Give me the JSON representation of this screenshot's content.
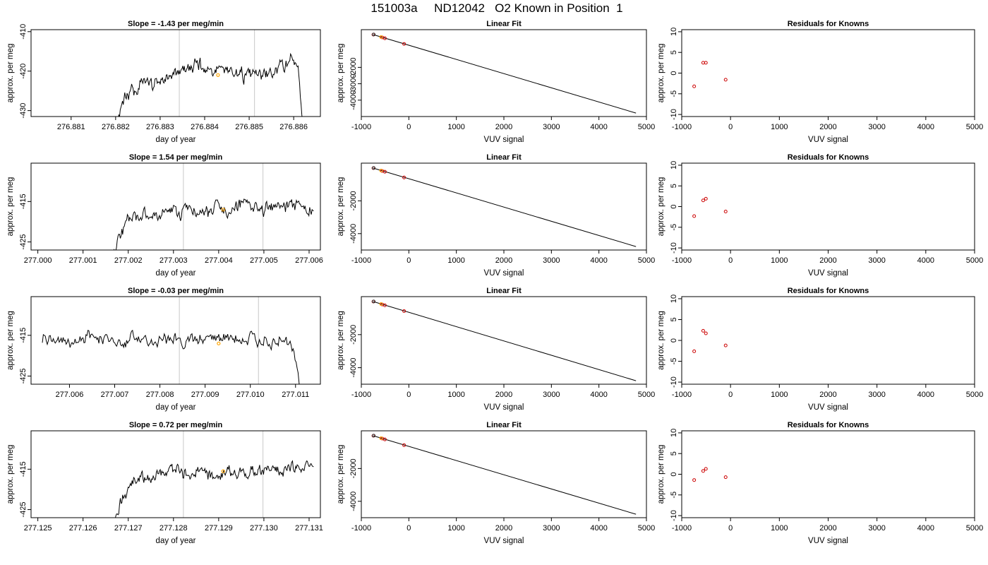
{
  "figure": {
    "title": "151003a     ND12042   O2 Known in Position  1"
  },
  "chart_data": [
    {
      "type": "line",
      "row": 1,
      "title": "Slope =  -1.43  per meg/min",
      "xlabel": "day of year",
      "ylabel": "approx. per meg",
      "xlim": [
        276.8801,
        276.8866
      ],
      "ylim": [
        -431.5,
        -409.5
      ],
      "xticks": [
        "276.881",
        "276.882",
        "276.883",
        "276.884",
        "276.885",
        "276.886"
      ],
      "yticks": [
        "-410",
        "-420",
        "-430"
      ],
      "vlines": [
        276.88343,
        276.88512
      ],
      "marker": {
        "x": 276.8843,
        "y": -421,
        "color": "#ffa500"
      },
      "trace": {
        "x_start": 276.8818,
        "x_end": 276.8862,
        "base": -421.5,
        "amp": 2.2,
        "seed": 11,
        "envelope": [
          [
            276.8818,
            -440
          ],
          [
            276.88205,
            -431.5
          ],
          [
            276.8822,
            -428
          ],
          [
            276.8825,
            -424
          ],
          [
            276.8829,
            -422.5
          ],
          [
            276.8833,
            -421
          ],
          [
            276.8838,
            -419
          ],
          [
            276.8845,
            -420
          ],
          [
            276.8853,
            -421
          ],
          [
            276.8858,
            -419
          ],
          [
            276.88595,
            -416.5
          ],
          [
            276.8861,
            -418
          ],
          [
            276.88615,
            -425
          ],
          [
            276.8862,
            -434
          ]
        ]
      }
    },
    {
      "type": "line",
      "title": "Linear Fit",
      "row": 1,
      "xlabel": "VUV signal",
      "ylabel": "approx. per meg",
      "xlim": [
        -1000,
        5000
      ],
      "ylim": [
        -5000,
        300
      ],
      "xticks": [
        "-1000",
        "0",
        "1000",
        "2000",
        "3000",
        "4000",
        "5000"
      ],
      "yticks": [
        "-2000",
        "-3000",
        "-4000"
      ],
      "line": [
        [
          -750,
          0
        ],
        [
          4780,
          -4790
        ]
      ],
      "points": [
        [
          -745,
          0,
          "#cc0000"
        ],
        [
          -560,
          -175,
          "#cc0000"
        ],
        [
          -505,
          -225,
          "#cc0000"
        ],
        [
          -100,
          -570,
          "#cc0000"
        ],
        [
          -740,
          5,
          "#222222"
        ],
        [
          -585,
          -150,
          "#ffa500"
        ]
      ]
    },
    {
      "type": "scatter",
      "title": "Residuals for Knowns",
      "row": 1,
      "xlabel": "VUV signal",
      "ylabel": "approx. per meg",
      "xlim": [
        -1000,
        5000
      ],
      "ylim": [
        -10.5,
        10.5
      ],
      "xticks": [
        "-1000",
        "0",
        "1000",
        "2000",
        "3000",
        "4000",
        "5000"
      ],
      "yticks": [
        "10",
        "5",
        "0",
        "-5",
        "-10"
      ],
      "points": [
        [
          -745,
          -3.2
        ],
        [
          -560,
          2.5
        ],
        [
          -505,
          2.5
        ],
        [
          -100,
          -1.6
        ]
      ]
    },
    {
      "type": "line",
      "row": 2,
      "title": "Slope =  1.54  per meg/min",
      "xlabel": "day of year",
      "ylabel": "approx. per meg",
      "xlim": [
        276.99985,
        277.00625
      ],
      "ylim": [
        -427,
        -405.5
      ],
      "xticks": [
        "277.000",
        "277.001",
        "277.002",
        "277.003",
        "277.004",
        "277.005",
        "277.006"
      ],
      "yticks": [
        "-415",
        "-425"
      ],
      "vlines": [
        277.00322,
        277.00498
      ],
      "marker": {
        "x": 277.0041,
        "y": -417,
        "color": "#ffa500"
      },
      "trace": {
        "x_start": 277.0016,
        "x_end": 277.0061,
        "base": -417.5,
        "amp": 2.0,
        "seed": 23,
        "envelope": [
          [
            277.0016,
            -430
          ],
          [
            277.0017,
            -427
          ],
          [
            277.0018,
            -423
          ],
          [
            277.002,
            -419
          ],
          [
            277.0025,
            -418.5
          ],
          [
            277.0032,
            -418
          ],
          [
            277.004,
            -417
          ],
          [
            277.0045,
            -416
          ],
          [
            277.0052,
            -416.5
          ],
          [
            277.0061,
            -416.5
          ]
        ]
      }
    },
    {
      "type": "line",
      "title": "Linear Fit",
      "row": 2,
      "xlabel": "VUV signal",
      "ylabel": "approx. per meg",
      "xlim": [
        -1000,
        5000
      ],
      "ylim": [
        -5000,
        300
      ],
      "xticks": [
        "-1000",
        "0",
        "1000",
        "2000",
        "3000",
        "4000",
        "5000"
      ],
      "yticks": [
        "-2000",
        "-4000"
      ],
      "line": [
        [
          -750,
          0
        ],
        [
          4780,
          -4790
        ]
      ],
      "points": [
        [
          -745,
          0,
          "#cc0000"
        ],
        [
          -560,
          -180,
          "#cc0000"
        ],
        [
          -505,
          -225,
          "#cc0000"
        ],
        [
          -100,
          -575,
          "#cc0000"
        ],
        [
          -740,
          5,
          "#222222"
        ],
        [
          -585,
          -150,
          "#ffa500"
        ]
      ]
    },
    {
      "type": "scatter",
      "title": "Residuals for Knowns",
      "row": 2,
      "xlabel": "VUV signal",
      "ylabel": "approx. per meg",
      "xlim": [
        -1000,
        5000
      ],
      "ylim": [
        -10.5,
        10.5
      ],
      "xticks": [
        "-1000",
        "0",
        "1000",
        "2000",
        "3000",
        "4000",
        "5000"
      ],
      "yticks": [
        "10",
        "5",
        "0",
        "-5",
        "-10"
      ],
      "points": [
        [
          -745,
          -2.3
        ],
        [
          -560,
          1.5
        ],
        [
          -505,
          1.9
        ],
        [
          -100,
          -1.2
        ]
      ]
    },
    {
      "type": "line",
      "row": 3,
      "title": "Slope =  -0.03  per meg/min",
      "xlabel": "day of year",
      "ylabel": "approx. per meg",
      "xlim": [
        277.00515,
        277.01155
      ],
      "ylim": [
        -427,
        -405.5
      ],
      "xticks": [
        "277.006",
        "277.007",
        "277.008",
        "277.009",
        "277.010",
        "277.011"
      ],
      "yticks": [
        "-415",
        "-425"
      ],
      "vlines": [
        277.00843,
        277.01018
      ],
      "marker": {
        "x": 277.0093,
        "y": -417,
        "color": "#ffa500"
      },
      "trace": {
        "x_start": 277.0054,
        "x_end": 277.0111,
        "base": -416.5,
        "amp": 2.0,
        "seed": 37,
        "envelope": [
          [
            277.0054,
            -416
          ],
          [
            277.0108,
            -416
          ],
          [
            277.01095,
            -418
          ],
          [
            277.01105,
            -426
          ],
          [
            277.0111,
            -430
          ]
        ]
      }
    },
    {
      "type": "line",
      "title": "Linear Fit",
      "row": 3,
      "xlabel": "VUV signal",
      "ylabel": "approx. per meg",
      "xlim": [
        -1000,
        5000
      ],
      "ylim": [
        -5000,
        300
      ],
      "xticks": [
        "-1000",
        "0",
        "1000",
        "2000",
        "3000",
        "4000",
        "5000"
      ],
      "yticks": [
        "-2000",
        "-4000"
      ],
      "line": [
        [
          -750,
          0
        ],
        [
          4780,
          -4790
        ]
      ],
      "points": [
        [
          -745,
          0,
          "#cc0000"
        ],
        [
          -560,
          -175,
          "#cc0000"
        ],
        [
          -505,
          -225,
          "#cc0000"
        ],
        [
          -100,
          -575,
          "#cc0000"
        ],
        [
          -740,
          5,
          "#222222"
        ],
        [
          -585,
          -150,
          "#ffa500"
        ]
      ]
    },
    {
      "type": "scatter",
      "title": "Residuals for Knowns",
      "row": 3,
      "xlabel": "VUV signal",
      "ylabel": "approx. per meg",
      "xlim": [
        -1000,
        5000
      ],
      "ylim": [
        -10.5,
        10.5
      ],
      "xticks": [
        "-1000",
        "0",
        "1000",
        "2000",
        "3000",
        "4000",
        "5000"
      ],
      "yticks": [
        "10",
        "5",
        "0",
        "-5",
        "-10"
      ],
      "points": [
        [
          -745,
          -2.6
        ],
        [
          -560,
          2.3
        ],
        [
          -505,
          1.7
        ],
        [
          -100,
          -1.2
        ]
      ]
    },
    {
      "type": "line",
      "row": 4,
      "title": "Slope =  0.72  per meg/min",
      "xlabel": "day of year",
      "ylabel": "approx. per meg",
      "xlim": [
        277.12485,
        277.13125
      ],
      "ylim": [
        -427,
        -405.5
      ],
      "xticks": [
        "277.125",
        "277.126",
        "277.127",
        "277.128",
        "277.129",
        "277.130",
        "277.131"
      ],
      "yticks": [
        "-415",
        "-425"
      ],
      "vlines": [
        277.12822,
        277.12998
      ],
      "marker": {
        "x": 277.1291,
        "y": -415.5,
        "color": "#ffa500"
      },
      "trace": {
        "x_start": 277.1266,
        "x_end": 277.1311,
        "base": -416,
        "amp": 2.0,
        "seed": 53,
        "envelope": [
          [
            277.1266,
            -430
          ],
          [
            277.12675,
            -426
          ],
          [
            277.1269,
            -421
          ],
          [
            277.1271,
            -418
          ],
          [
            277.1276,
            -416.5
          ],
          [
            277.1285,
            -416
          ],
          [
            277.13,
            -415.5
          ],
          [
            277.1311,
            -414.5
          ]
        ]
      }
    },
    {
      "type": "line",
      "title": "Linear Fit",
      "row": 4,
      "xlabel": "VUV signal",
      "ylabel": "approx. per meg",
      "xlim": [
        -1000,
        5000
      ],
      "ylim": [
        -5000,
        300
      ],
      "xticks": [
        "-1000",
        "0",
        "1000",
        "2000",
        "3000",
        "4000",
        "5000"
      ],
      "yticks": [
        "-2000",
        "-4000"
      ],
      "line": [
        [
          -750,
          0
        ],
        [
          4780,
          -4790
        ]
      ],
      "points": [
        [
          -745,
          0,
          "#cc0000"
        ],
        [
          -560,
          -175,
          "#cc0000"
        ],
        [
          -505,
          -225,
          "#cc0000"
        ],
        [
          -100,
          -575,
          "#cc0000"
        ],
        [
          -740,
          5,
          "#222222"
        ],
        [
          -585,
          -150,
          "#ffa500"
        ]
      ]
    },
    {
      "type": "scatter",
      "title": "Residuals for Knowns",
      "row": 4,
      "xlabel": "VUV signal",
      "ylabel": "approx. per meg",
      "xlim": [
        -1000,
        5000
      ],
      "ylim": [
        -10.5,
        10.5
      ],
      "xticks": [
        "-1000",
        "0",
        "1000",
        "2000",
        "3000",
        "4000",
        "5000"
      ],
      "yticks": [
        "10",
        "5",
        "0",
        "-5",
        "-10"
      ],
      "points": [
        [
          -745,
          -1.4
        ],
        [
          -560,
          0.8
        ],
        [
          -505,
          1.3
        ],
        [
          -100,
          -0.7
        ]
      ]
    }
  ]
}
